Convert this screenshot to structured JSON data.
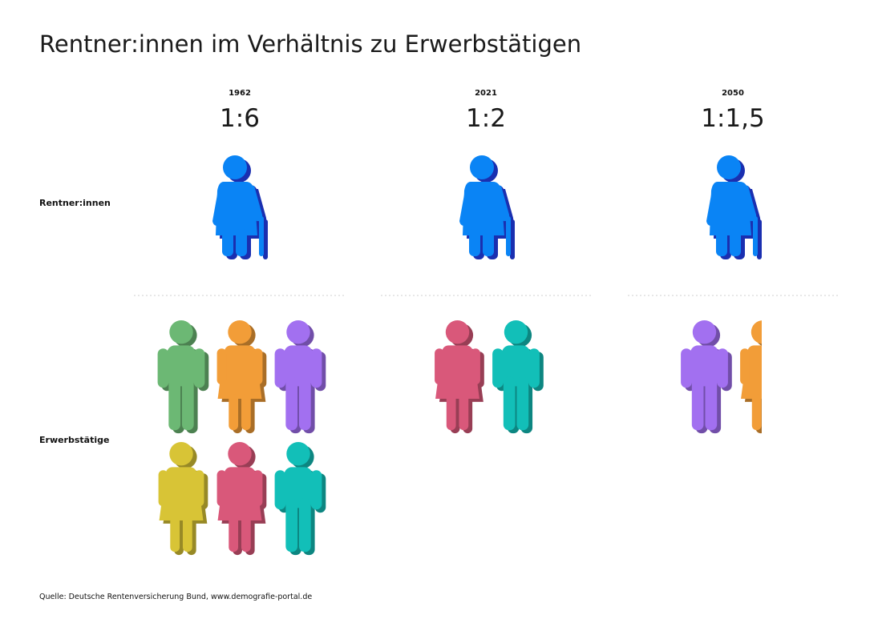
{
  "title": "Rentner:innen im Verhältnis zu Erwerbstätigen",
  "source": "Quelle: Deutsche Rentenversicherung Bund, www.demografie-portal.de",
  "row_labels": {
    "retirees": "Rentner:innen",
    "workers": "Erwerbstätige"
  },
  "chart_data": {
    "type": "pictogram",
    "title": "Rentner:innen im Verhältnis zu Erwerbstätigen",
    "categories": [
      "1962",
      "2021",
      "2050"
    ],
    "ratio_labels": [
      "1:6",
      "1:2",
      "1:1,5"
    ],
    "series": [
      {
        "name": "Rentner:innen",
        "values": [
          1,
          1,
          1
        ]
      },
      {
        "name": "Erwerbstätige",
        "values": [
          6,
          2,
          1.5
        ]
      }
    ],
    "colors": {
      "retiree": "#0a84f5",
      "retiree_shadow": "#1a2fb0",
      "green": "#6cb874",
      "orange": "#f29d38",
      "purple": "#a270f0",
      "yellow": "#d8c436",
      "pink": "#d9587a",
      "teal": "#12bfb8"
    }
  }
}
